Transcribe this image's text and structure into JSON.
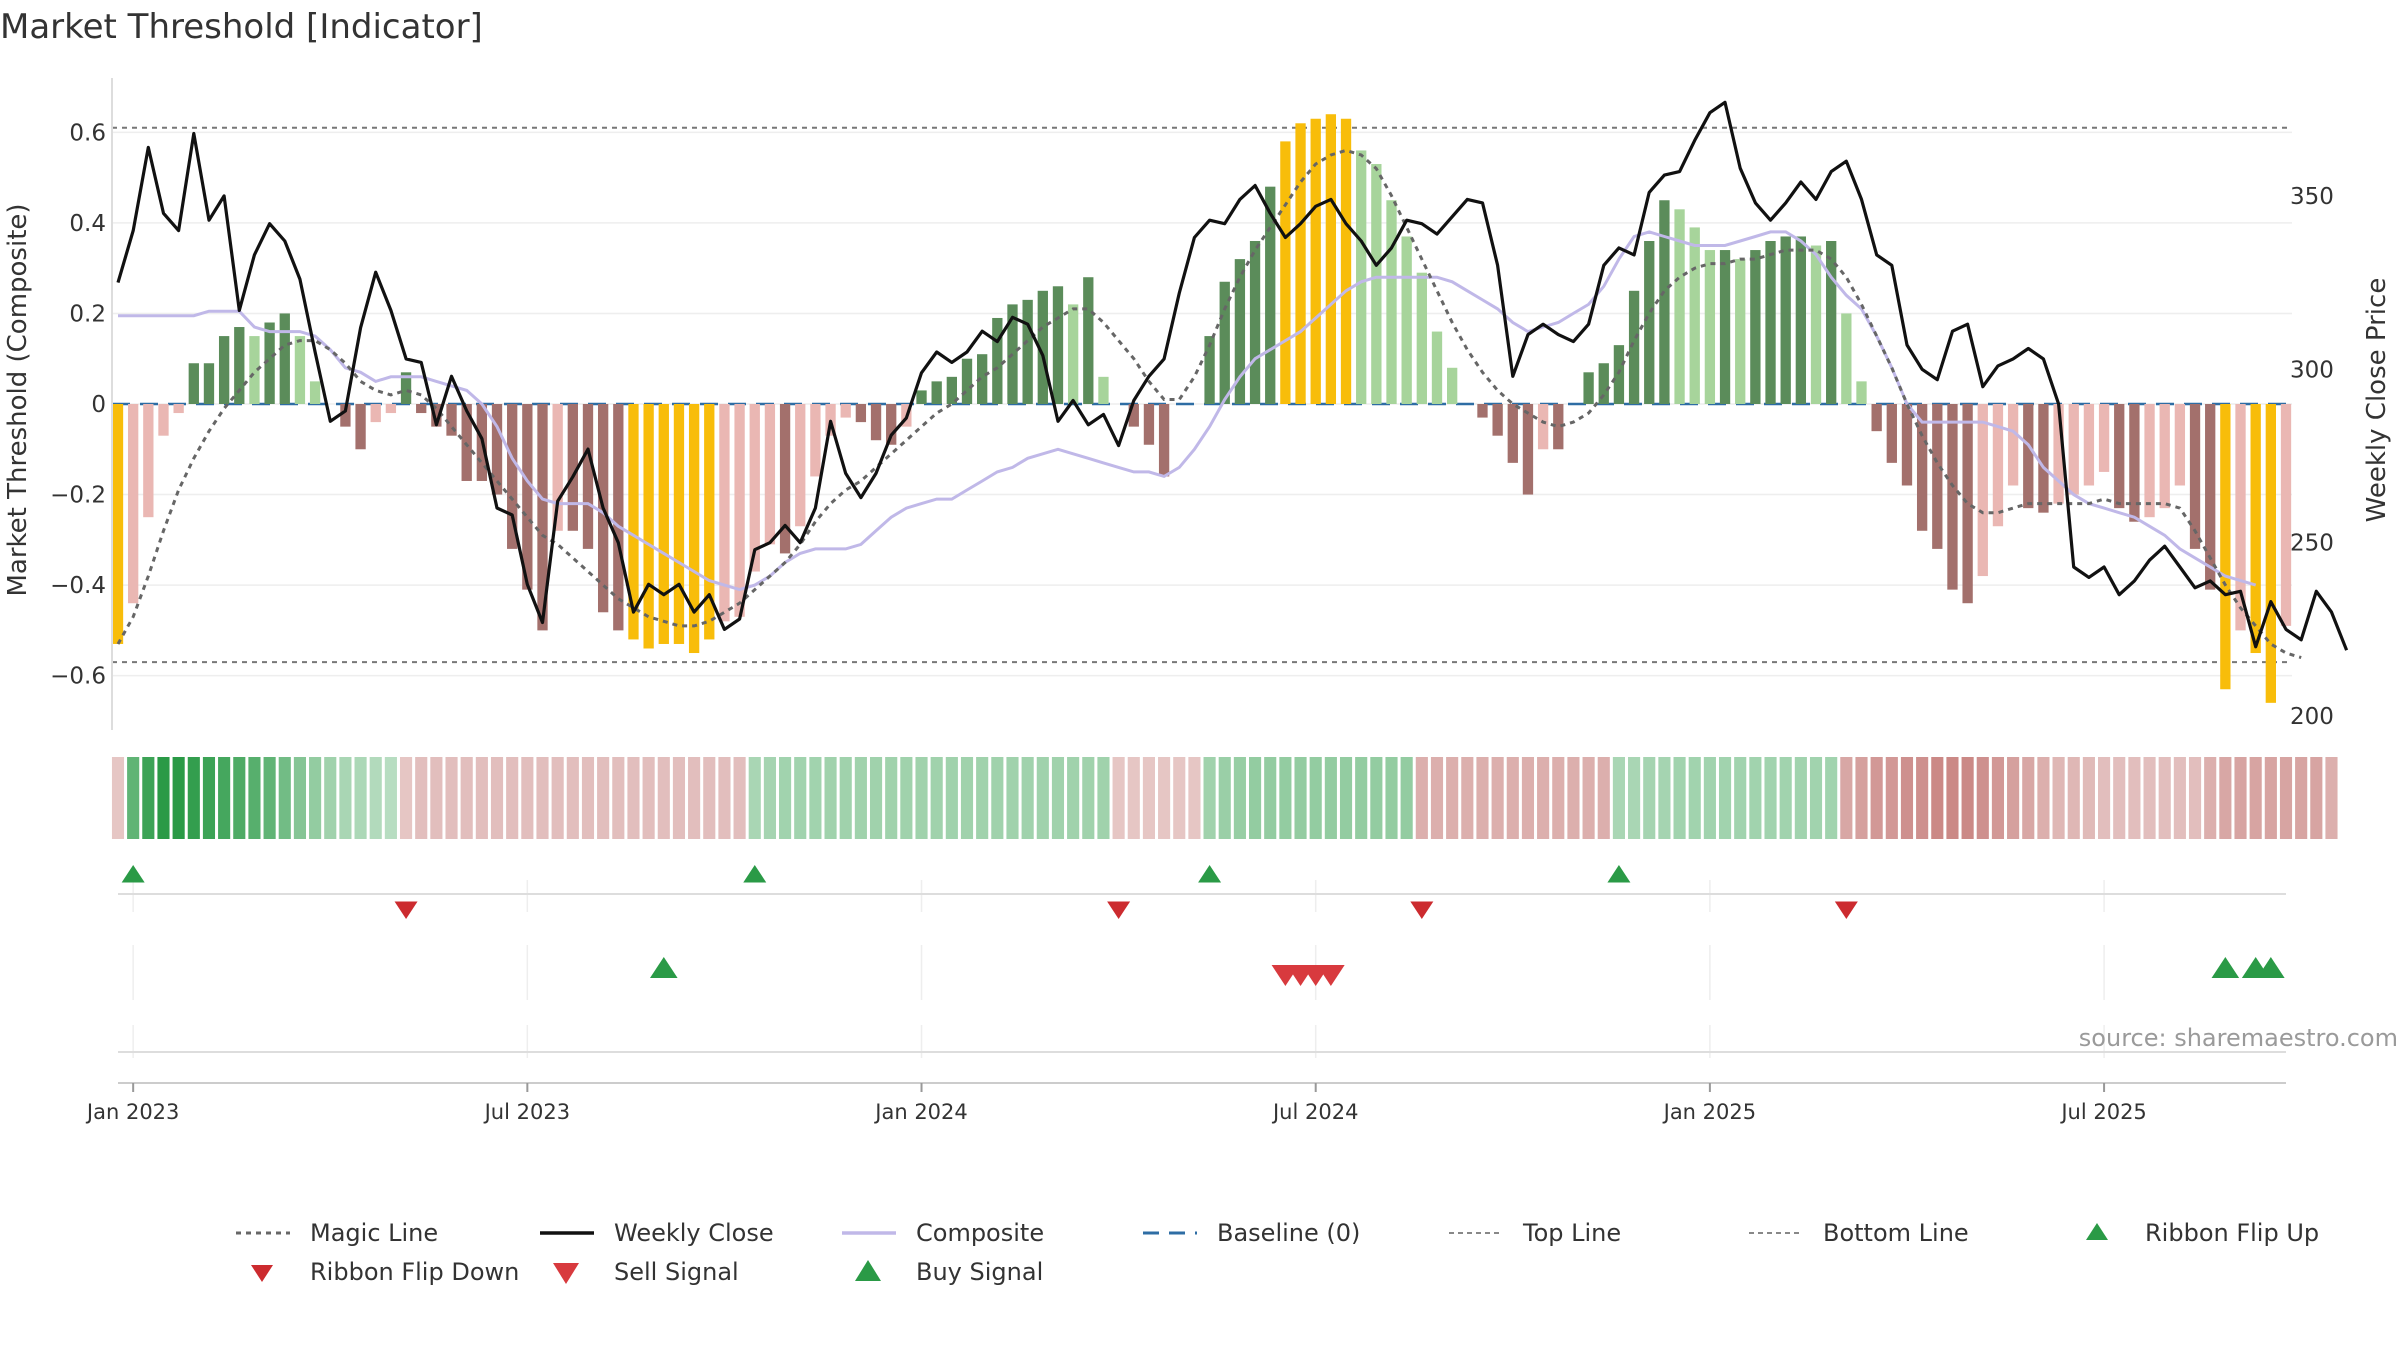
{
  "chart_data": {
    "type": "bar",
    "title": "Market Threshold [Indicator]",
    "ylabel": "Market Threshold (Composite)",
    "y2label": "Weekly Close Price",
    "ylim": [
      -0.72,
      0.72
    ],
    "y2lim": [
      196,
      384
    ],
    "yticks": [
      {
        "v": 0.6,
        "label": "0.6"
      },
      {
        "v": 0.4,
        "label": "0.4"
      },
      {
        "v": 0.2,
        "label": "0.2"
      },
      {
        "v": 0,
        "label": "0"
      },
      {
        "v": -0.2,
        "label": "−0.2"
      },
      {
        "v": -0.4,
        "label": "−0.4"
      },
      {
        "v": -0.6,
        "label": "−0.6"
      }
    ],
    "y2ticks": [
      {
        "v": 350,
        "label": "350"
      },
      {
        "v": 300,
        "label": "300"
      },
      {
        "v": 250,
        "label": "250"
      },
      {
        "v": 200,
        "label": "200"
      }
    ],
    "xticks": [
      {
        "t": 1,
        "label": "Jan 2023"
      },
      {
        "t": 27,
        "label": "Jul 2023"
      },
      {
        "t": 53,
        "label": "Jan 2024"
      },
      {
        "t": 79,
        "label": "Jul 2024"
      },
      {
        "t": 105,
        "label": "Jan 2025"
      },
      {
        "t": 131,
        "label": "Jul 2025"
      }
    ],
    "top_line": 0.61,
    "bottom_line": -0.57,
    "composite_bars": [
      -0.53,
      -0.44,
      -0.25,
      -0.07,
      -0.02,
      0.09,
      0.09,
      0.15,
      0.17,
      0.15,
      0.18,
      0.2,
      0.15,
      0.05,
      0.0,
      -0.05,
      -0.1,
      -0.04,
      -0.02,
      0.07,
      -0.02,
      -0.05,
      -0.07,
      -0.17,
      -0.17,
      -0.2,
      -0.32,
      -0.41,
      -0.5,
      -0.28,
      -0.28,
      -0.32,
      -0.46,
      -0.5,
      -0.52,
      -0.54,
      -0.53,
      -0.53,
      -0.55,
      -0.52,
      -0.48,
      -0.47,
      -0.37,
      -0.31,
      -0.33,
      -0.27,
      -0.16,
      -0.07,
      -0.03,
      -0.04,
      -0.08,
      -0.09,
      -0.05,
      0.03,
      0.05,
      0.06,
      0.1,
      0.11,
      0.19,
      0.22,
      0.23,
      0.25,
      0.26,
      0.22,
      0.28,
      0.06,
      0.0,
      -0.05,
      -0.09,
      -0.16,
      0.0,
      0.0,
      0.15,
      0.27,
      0.32,
      0.36,
      0.48,
      0.58,
      0.62,
      0.63,
      0.64,
      0.63,
      0.56,
      0.53,
      0.45,
      0.37,
      0.29,
      0.16,
      0.08,
      0.0,
      -0.03,
      -0.07,
      -0.13,
      -0.2,
      -0.1,
      -0.1,
      0.0,
      0.07,
      0.09,
      0.13,
      0.25,
      0.36,
      0.45,
      0.43,
      0.39,
      0.34,
      0.34,
      0.32,
      0.34,
      0.36,
      0.37,
      0.37,
      0.35,
      0.36,
      0.2,
      0.05,
      -0.06,
      -0.13,
      -0.18,
      -0.28,
      -0.32,
      -0.41,
      -0.44,
      -0.38,
      -0.27,
      -0.18,
      -0.23,
      -0.24,
      -0.22,
      -0.2,
      -0.18,
      -0.15,
      -0.23,
      -0.26,
      -0.25,
      -0.23,
      -0.18,
      -0.32,
      -0.41,
      -0.63,
      -0.5,
      -0.55,
      -0.66,
      -0.49
    ],
    "magic_line": [
      -0.53,
      -0.47,
      -0.38,
      -0.28,
      -0.19,
      -0.12,
      -0.06,
      -0.01,
      0.03,
      0.07,
      0.1,
      0.13,
      0.14,
      0.14,
      0.12,
      0.09,
      0.05,
      0.03,
      0.02,
      0.03,
      0.02,
      -0.01,
      -0.05,
      -0.09,
      -0.13,
      -0.17,
      -0.21,
      -0.25,
      -0.29,
      -0.31,
      -0.34,
      -0.37,
      -0.4,
      -0.43,
      -0.45,
      -0.47,
      -0.48,
      -0.49,
      -0.49,
      -0.48,
      -0.46,
      -0.44,
      -0.41,
      -0.38,
      -0.35,
      -0.31,
      -0.26,
      -0.22,
      -0.19,
      -0.17,
      -0.14,
      -0.11,
      -0.08,
      -0.05,
      -0.02,
      0.0,
      0.03,
      0.06,
      0.08,
      0.11,
      0.14,
      0.17,
      0.19,
      0.21,
      0.21,
      0.18,
      0.14,
      0.1,
      0.05,
      0.01,
      0.01,
      0.06,
      0.13,
      0.21,
      0.28,
      0.34,
      0.39,
      0.44,
      0.49,
      0.53,
      0.55,
      0.56,
      0.55,
      0.52,
      0.46,
      0.39,
      0.32,
      0.25,
      0.18,
      0.12,
      0.07,
      0.03,
      0.0,
      -0.02,
      -0.04,
      -0.05,
      -0.04,
      -0.02,
      0.02,
      0.07,
      0.14,
      0.2,
      0.25,
      0.28,
      0.3,
      0.31,
      0.31,
      0.32,
      0.32,
      0.33,
      0.34,
      0.34,
      0.34,
      0.32,
      0.28,
      0.22,
      0.15,
      0.08,
      0.0,
      -0.07,
      -0.13,
      -0.18,
      -0.22,
      -0.24,
      -0.24,
      -0.23,
      -0.22,
      -0.22,
      -0.22,
      -0.22,
      -0.22,
      -0.21,
      -0.22,
      -0.22,
      -0.22,
      -0.22,
      -0.23,
      -0.28,
      -0.34,
      -0.4,
      -0.45,
      -0.49,
      -0.53,
      -0.55,
      -0.56
    ],
    "composite": [
      0.195,
      0.195,
      0.195,
      0.195,
      0.195,
      0.195,
      0.205,
      0.205,
      0.205,
      0.17,
      0.16,
      0.16,
      0.16,
      0.15,
      0.12,
      0.08,
      0.07,
      0.05,
      0.06,
      0.06,
      0.06,
      0.05,
      0.04,
      0.03,
      0.0,
      -0.05,
      -0.12,
      -0.17,
      -0.21,
      -0.22,
      -0.22,
      -0.22,
      -0.24,
      -0.27,
      -0.29,
      -0.31,
      -0.33,
      -0.35,
      -0.37,
      -0.39,
      -0.4,
      -0.41,
      -0.4,
      -0.38,
      -0.35,
      -0.33,
      -0.32,
      -0.32,
      -0.32,
      -0.31,
      -0.28,
      -0.25,
      -0.23,
      -0.22,
      -0.21,
      -0.21,
      -0.19,
      -0.17,
      -0.15,
      -0.14,
      -0.12,
      -0.11,
      -0.1,
      -0.11,
      -0.12,
      -0.13,
      -0.14,
      -0.15,
      -0.15,
      -0.16,
      -0.14,
      -0.1,
      -0.05,
      0.01,
      0.06,
      0.1,
      0.12,
      0.14,
      0.16,
      0.19,
      0.22,
      0.25,
      0.27,
      0.28,
      0.28,
      0.28,
      0.28,
      0.28,
      0.27,
      0.25,
      0.23,
      0.21,
      0.18,
      0.16,
      0.17,
      0.18,
      0.2,
      0.22,
      0.26,
      0.32,
      0.37,
      0.38,
      0.37,
      0.36,
      0.35,
      0.35,
      0.35,
      0.36,
      0.37,
      0.38,
      0.38,
      0.36,
      0.33,
      0.28,
      0.24,
      0.21,
      0.15,
      0.08,
      0.0,
      -0.04,
      -0.04,
      -0.04,
      -0.04,
      -0.04,
      -0.05,
      -0.06,
      -0.09,
      -0.14,
      -0.17,
      -0.2,
      -0.22,
      -0.23,
      -0.24,
      -0.25,
      -0.27,
      -0.29,
      -0.32,
      -0.34,
      -0.36,
      -0.38,
      -0.39,
      -0.4
    ],
    "weekly_close": [
      325,
      340,
      364,
      345,
      340,
      368,
      343,
      350,
      317,
      333,
      342,
      337,
      326,
      305,
      285,
      288,
      312,
      328,
      317,
      303,
      302,
      284,
      298,
      288,
      280,
      260,
      258,
      238,
      227,
      262,
      269,
      277,
      260,
      250,
      230,
      238,
      235,
      238,
      230,
      235,
      225,
      228,
      248,
      250,
      255,
      250,
      260,
      285,
      270,
      263,
      270,
      281,
      286,
      299,
      305,
      302,
      305,
      311,
      308,
      315,
      313,
      304,
      285,
      291,
      284,
      287,
      278,
      291,
      298,
      303,
      322,
      338,
      343,
      342,
      349,
      353,
      345,
      338,
      342,
      347,
      349,
      342,
      337,
      330,
      335,
      343,
      342,
      339,
      344,
      349,
      348,
      330,
      298,
      310,
      313,
      310,
      308,
      313,
      330,
      335,
      333,
      351,
      356,
      357,
      366,
      374,
      377,
      358,
      348,
      343,
      348,
      354,
      349,
      357,
      360,
      349,
      333,
      330,
      307,
      300,
      297,
      311,
      313,
      295,
      301,
      303,
      306,
      303,
      290,
      243,
      240,
      243,
      235,
      239,
      245,
      249,
      243,
      237,
      239,
      235,
      236,
      220,
      233,
      225,
      222,
      236,
      230,
      219
    ],
    "ribbon": [
      -0.2,
      0.7,
      0.9,
      1.0,
      1.0,
      0.95,
      0.9,
      0.85,
      0.8,
      0.75,
      0.7,
      0.6,
      0.5,
      0.42,
      0.35,
      0.3,
      0.28,
      0.25,
      0.22,
      -0.2,
      -0.25,
      -0.25,
      -0.25,
      -0.25,
      -0.25,
      -0.25,
      -0.25,
      -0.25,
      -0.25,
      -0.25,
      -0.25,
      -0.25,
      -0.25,
      -0.25,
      -0.25,
      -0.25,
      -0.25,
      -0.25,
      -0.25,
      -0.25,
      -0.25,
      -0.25,
      0.3,
      0.32,
      0.34,
      0.34,
      0.34,
      0.35,
      0.35,
      0.35,
      0.35,
      0.35,
      0.35,
      0.35,
      0.35,
      0.35,
      0.35,
      0.35,
      0.35,
      0.35,
      0.35,
      0.35,
      0.35,
      0.35,
      0.35,
      0.35,
      -0.2,
      -0.2,
      -0.2,
      -0.2,
      -0.2,
      -0.2,
      0.35,
      0.38,
      0.4,
      0.42,
      0.42,
      0.42,
      0.42,
      0.42,
      0.42,
      0.42,
      0.42,
      0.42,
      0.42,
      0.42,
      -0.35,
      -0.35,
      -0.35,
      -0.35,
      -0.35,
      -0.35,
      -0.35,
      -0.35,
      -0.35,
      -0.35,
      -0.35,
      -0.35,
      -0.35,
      0.3,
      0.3,
      0.32,
      0.32,
      0.34,
      0.34,
      0.34,
      0.34,
      0.34,
      0.34,
      0.34,
      0.34,
      0.34,
      0.34,
      0.34,
      -0.4,
      -0.45,
      -0.5,
      -0.5,
      -0.55,
      -0.55,
      -0.6,
      -0.6,
      -0.6,
      -0.55,
      -0.5,
      -0.45,
      -0.4,
      -0.35,
      -0.3,
      -0.3,
      -0.28,
      -0.25,
      -0.25,
      -0.25,
      -0.25,
      -0.25,
      -0.25,
      -0.25,
      -0.35,
      -0.4,
      -0.42,
      -0.42,
      -0.42,
      -0.42,
      -0.42,
      -0.42,
      -0.35
    ],
    "ribbon_flip_up": [
      1,
      42,
      72,
      99
    ],
    "ribbon_flip_down": [
      19,
      66,
      86,
      114
    ],
    "buy_signals": [
      36,
      139,
      141,
      142
    ],
    "sell_signals": [
      77,
      78,
      79,
      80
    ],
    "legend": [
      {
        "key": "magic",
        "label": "Magic Line"
      },
      {
        "key": "close",
        "label": "Weekly Close"
      },
      {
        "key": "composite",
        "label": "Composite"
      },
      {
        "key": "baseline",
        "label": "Baseline (0)"
      },
      {
        "key": "top",
        "label": "Top Line"
      },
      {
        "key": "bottom",
        "label": "Bottom Line"
      },
      {
        "key": "flipup",
        "label": "Ribbon Flip Up"
      },
      {
        "key": "flipdown",
        "label": "Ribbon Flip Down"
      },
      {
        "key": "sell",
        "label": "Sell Signal"
      },
      {
        "key": "buy",
        "label": "Buy Signal"
      }
    ],
    "source": "source: sharemaestro.com"
  },
  "colors": {
    "pos_strong": "#5b8c5a",
    "pos_light": "#a7d49b",
    "neg_strong": "#a3706c",
    "neg_light": "#eab7b3",
    "extreme": "#f8bd0a",
    "close": "#111111",
    "composite": "#c0b8e8",
    "magic": "#666666",
    "baseline": "#2e6da4",
    "buy": "#2a9a46",
    "sell": "#d83a3e",
    "grid": "#eeeeee"
  }
}
